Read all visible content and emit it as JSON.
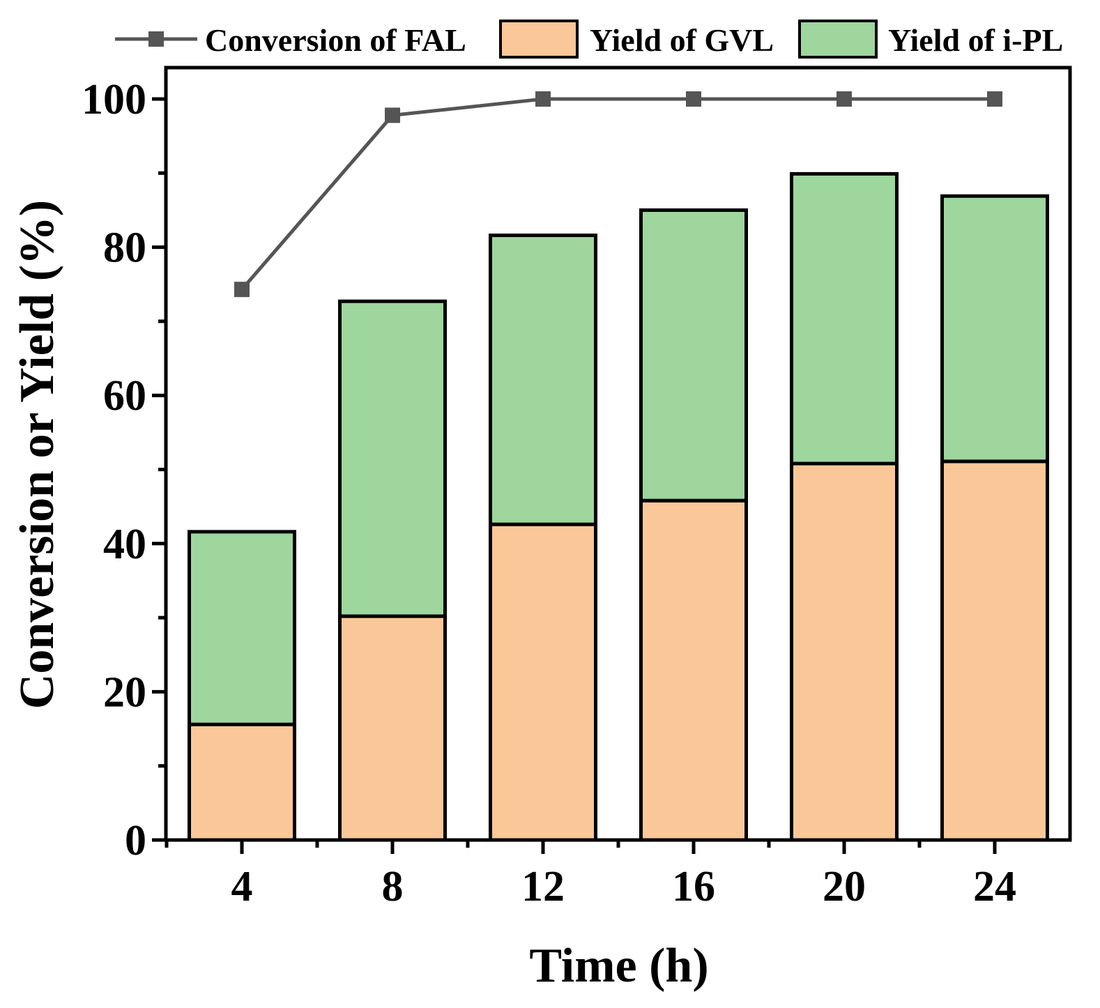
{
  "chart_data": {
    "type": "bar",
    "stacked": true,
    "categories": [
      "4",
      "8",
      "12",
      "16",
      "20",
      "24"
    ],
    "x": [
      4,
      8,
      12,
      16,
      20,
      24
    ],
    "series": [
      {
        "name": "Yield of GVL",
        "kind": "bar",
        "values": [
          15.6,
          30.2,
          42.6,
          45.8,
          50.8,
          51.1
        ],
        "color": "#fac898"
      },
      {
        "name": "Yield of i-PL",
        "kind": "bar",
        "values": [
          26.0,
          42.5,
          39.0,
          39.2,
          39.1,
          35.8
        ],
        "color": "#9ed69e"
      },
      {
        "name": "Conversion of FAL",
        "kind": "line",
        "values": [
          74.3,
          97.8,
          100,
          100,
          100,
          100
        ],
        "color": "#555555"
      }
    ],
    "title": "",
    "xlabel": "Time (h)",
    "ylabel": "Conversion or Yield (%)",
    "xlim": [
      2,
      26
    ],
    "ylim": [
      0,
      100
    ],
    "yticks": [
      0,
      20,
      40,
      60,
      80,
      100
    ],
    "grid": false,
    "legend": "top"
  }
}
